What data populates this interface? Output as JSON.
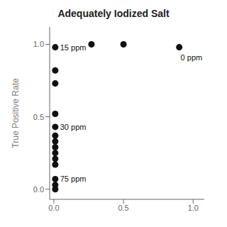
{
  "chart_data": {
    "type": "scatter",
    "title": "Adequately Iodized Salt",
    "ylabel": "True Positive Rate",
    "x": [
      0.01,
      0.27,
      0.5,
      0.9,
      0.01,
      0.01,
      0.01,
      0.01,
      0.01,
      0.01,
      0.01,
      0.01,
      0.01,
      0.01,
      0.01,
      0.01,
      0.01
    ],
    "values": [
      0.98,
      1.0,
      1.0,
      0.98,
      0.82,
      0.73,
      0.52,
      0.43,
      0.37,
      0.33,
      0.29,
      0.25,
      0.21,
      0.17,
      0.07,
      0.03,
      0.0
    ],
    "xlim": [
      -0.03,
      1.08
    ],
    "ylim": [
      -0.07,
      1.12
    ],
    "xticks": [
      {
        "value": 0,
        "label": "0.0"
      },
      0.5,
      {
        "value": 1,
        "label": "1.0"
      }
    ],
    "yticks": [
      {
        "value": 0,
        "label": "0.0"
      },
      0.5,
      {
        "value": 1,
        "label": "1.0"
      }
    ],
    "color": "#111111",
    "grid": false,
    "annotations": [
      {
        "text": "15 ppm",
        "x": 0.045,
        "y": 0.98
      },
      {
        "text": "0 ppm",
        "x": 0.91,
        "y": 0.91
      },
      {
        "text": "30 ppm",
        "x": 0.045,
        "y": 0.43
      },
      {
        "text": "75 ppm",
        "x": 0.045,
        "y": 0.07
      }
    ]
  }
}
